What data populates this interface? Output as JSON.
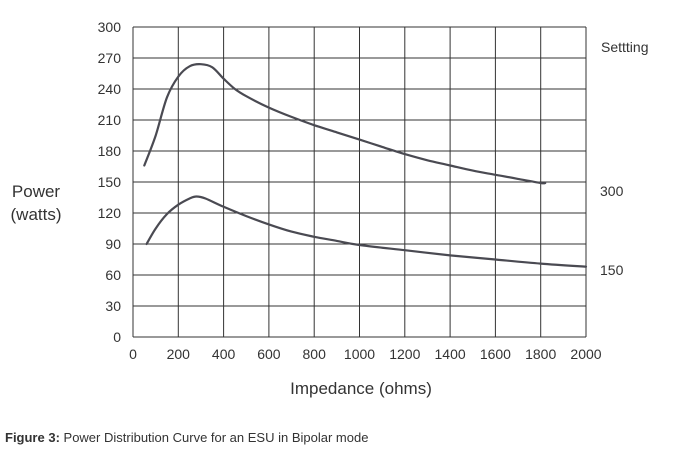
{
  "caption": {
    "label": "Figure 3:",
    "text": " Power Distribution Curve for an ESU in Bipolar mode"
  },
  "chart_data": {
    "type": "line",
    "title": "",
    "xlabel": "Impedance (ohms)",
    "ylabel_lines": [
      "Power",
      "(watts)"
    ],
    "xlim": [
      0,
      2000
    ],
    "ylim": [
      0,
      300
    ],
    "xticks": [
      0,
      200,
      400,
      600,
      800,
      1000,
      1200,
      1400,
      1600,
      1800,
      2000
    ],
    "yticks": [
      0,
      30,
      60,
      90,
      120,
      150,
      180,
      210,
      240,
      270,
      300
    ],
    "grid": true,
    "legend_title": "Setting",
    "legend_title_display": "Settting",
    "line_color": "#4a4a52",
    "grid_color": "#333333",
    "series": [
      {
        "name": "300",
        "x": [
          50,
          100,
          150,
          200,
          250,
          300,
          350,
          400,
          450,
          500,
          600,
          700,
          800,
          900,
          1000,
          1100,
          1200,
          1300,
          1400,
          1500,
          1600,
          1700,
          1800,
          1820
        ],
        "y": [
          166,
          195,
          232,
          252,
          262,
          264,
          261,
          250,
          240,
          233,
          222,
          213,
          205,
          198,
          191,
          184,
          177,
          171,
          166,
          161,
          157,
          153,
          149,
          149
        ]
      },
      {
        "name": "150",
        "x": [
          60,
          100,
          150,
          200,
          250,
          280,
          320,
          400,
          500,
          600,
          700,
          800,
          900,
          1000,
          1200,
          1400,
          1600,
          1800,
          2000
        ],
        "y": [
          90,
          105,
          119,
          128,
          134,
          136,
          134,
          126,
          117,
          109,
          102,
          97,
          93,
          89,
          84,
          79,
          75,
          71,
          68
        ]
      }
    ]
  }
}
